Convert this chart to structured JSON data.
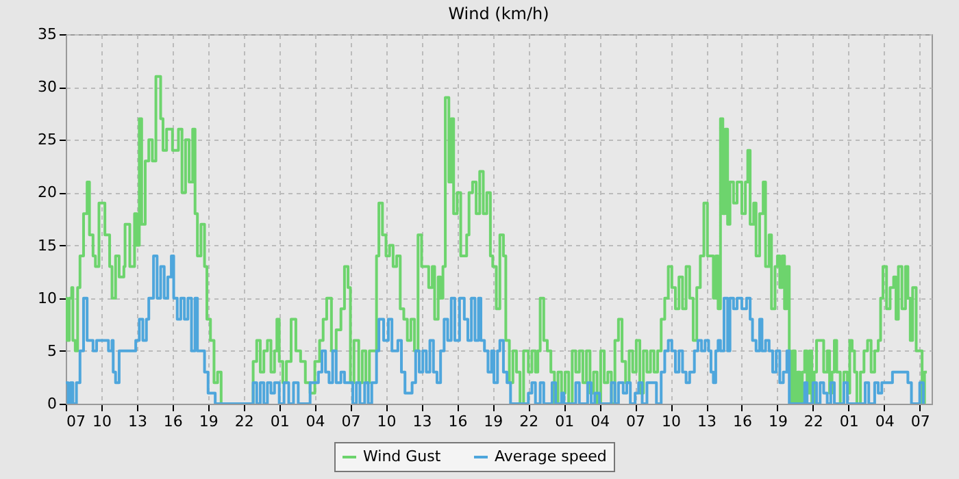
{
  "chart_data": {
    "type": "step",
    "title": "Wind (km/h)",
    "legend": "bottom",
    "grid": true,
    "xlim": [
      "--01-01T07:00",
      "--01-04T08:00"
    ],
    "ylim": [
      0,
      35
    ],
    "yticks": [
      0,
      5,
      10,
      15,
      20,
      25,
      30,
      35
    ],
    "xticks": [
      {
        "value": "--01-01T07:00",
        "label": "07"
      },
      {
        "value": "--01-01T10:00",
        "label": "10"
      },
      {
        "value": "--01-01T13:00",
        "label": "13"
      },
      {
        "value": "--01-01T16:00",
        "label": "16"
      },
      {
        "value": "--01-01T19:00",
        "label": "19"
      },
      {
        "value": "--01-01T22:00",
        "label": "22"
      },
      {
        "value": "--01-02T01:00",
        "label": "01"
      },
      {
        "value": "--01-02T04:00",
        "label": "04"
      },
      {
        "value": "--01-02T07:00",
        "label": "07"
      },
      {
        "value": "--01-02T10:00",
        "label": "10"
      },
      {
        "value": "--01-02T13:00",
        "label": "13"
      },
      {
        "value": "--01-02T16:00",
        "label": "16"
      },
      {
        "value": "--01-02T19:00",
        "label": "19"
      },
      {
        "value": "--01-02T22:00",
        "label": "22"
      },
      {
        "value": "--01-03T01:00",
        "label": "01"
      },
      {
        "value": "--01-03T04:00",
        "label": "04"
      },
      {
        "value": "--01-03T07:00",
        "label": "07"
      },
      {
        "value": "--01-03T10:00",
        "label": "10"
      },
      {
        "value": "--01-03T13:00",
        "label": "13"
      },
      {
        "value": "--01-03T16:00",
        "label": "16"
      },
      {
        "value": "--01-03T19:00",
        "label": "19"
      },
      {
        "value": "--01-03T22:00",
        "label": "22"
      },
      {
        "value": "--01-04T01:00",
        "label": "01"
      },
      {
        "value": "--01-04T04:00",
        "label": "04"
      },
      {
        "value": "--01-04T07:00",
        "label": "07"
      }
    ],
    "series": [
      {
        "name": "Wind Gust",
        "color": "#6dd46d",
        "x": [
          "--01-01T07:00",
          "--01-01T07:06",
          "--01-01T07:18",
          "--01-01T07:30",
          "--01-01T07:36",
          "--01-01T07:48",
          "--01-01T08:00",
          "--01-01T08:12",
          "--01-01T08:30",
          "--01-01T08:48",
          "--01-01T09:00",
          "--01-01T09:18",
          "--01-01T09:30",
          "--01-01T09:48",
          "--01-01T10:18",
          "--01-01T10:42",
          "--01-01T10:54",
          "--01-01T11:12",
          "--01-01T11:30",
          "--01-01T11:54",
          "--01-01T12:00",
          "--01-01T12:24",
          "--01-01T12:48",
          "--01-01T13:00",
          "--01-01T13:12",
          "--01-01T13:24",
          "--01-01T13:42",
          "--01-01T14:00",
          "--01-01T14:18",
          "--01-01T14:36",
          "--01-01T14:54",
          "--01-01T15:00",
          "--01-01T15:12",
          "--01-01T15:30",
          "--01-01T16:00",
          "--01-01T16:30",
          "--01-01T16:48",
          "--01-01T17:06",
          "--01-01T17:24",
          "--01-01T17:42",
          "--01-01T17:54",
          "--01-01T18:06",
          "--01-01T18:24",
          "--01-01T18:42",
          "--01-01T18:54",
          "--01-01T19:12",
          "--01-01T19:30",
          "--01-01T19:48",
          "--01-01T20:06",
          "--01-01T22:48",
          "--01-01T23:06",
          "--01-01T23:24",
          "--01-01T23:42",
          "--01-02T00:00",
          "--01-02T00:18",
          "--01-02T00:36",
          "--01-02T00:48",
          "--01-02T01:00",
          "--01-02T01:18",
          "--01-02T01:36",
          "--01-02T02:00",
          "--01-02T02:24",
          "--01-02T02:48",
          "--01-02T03:12",
          "--01-02T03:36",
          "--01-02T04:00",
          "--01-02T04:24",
          "--01-02T04:42",
          "--01-02T05:00",
          "--01-02T05:24",
          "--01-02T05:48",
          "--01-02T06:12",
          "--01-02T06:30",
          "--01-02T06:48",
          "--01-02T07:00",
          "--01-02T07:18",
          "--01-02T07:42",
          "--01-02T08:00",
          "--01-02T08:18",
          "--01-02T08:36",
          "--01-02T09:00",
          "--01-02T09:12",
          "--01-02T09:24",
          "--01-02T09:42",
          "--01-02T10:00",
          "--01-02T10:18",
          "--01-02T10:36",
          "--01-02T10:54",
          "--01-02T11:12",
          "--01-02T11:30",
          "--01-02T11:48",
          "--01-02T12:06",
          "--01-02T12:24",
          "--01-02T12:42",
          "--01-02T13:00",
          "--01-02T13:18",
          "--01-02T13:36",
          "--01-02T13:54",
          "--01-02T14:06",
          "--01-02T14:24",
          "--01-02T14:36",
          "--01-02T14:48",
          "--01-02T15:00",
          "--01-02T15:18",
          "--01-02T15:30",
          "--01-02T15:42",
          "--01-02T16:00",
          "--01-02T16:18",
          "--01-02T16:36",
          "--01-02T16:48",
          "--01-02T17:00",
          "--01-02T17:18",
          "--01-02T17:36",
          "--01-02T17:54",
          "--01-02T18:12",
          "--01-02T18:30",
          "--01-02T18:48",
          "--01-02T19:00",
          "--01-02T19:18",
          "--01-02T19:36",
          "--01-02T19:54",
          "--01-02T20:06",
          "--01-02T20:24",
          "--01-02T20:42",
          "--01-02T21:00",
          "--01-02T21:18",
          "--01-02T21:36",
          "--01-02T22:00",
          "--01-02T22:18",
          "--01-02T22:36",
          "--01-02T22:48",
          "--01-02T23:00",
          "--01-02T23:18",
          "--01-02T23:36",
          "--01-02T23:54",
          "--01-03T00:12",
          "--01-03T00:30",
          "--01-03T00:48",
          "--01-03T01:06",
          "--01-03T01:24",
          "--01-03T01:42",
          "--01-03T02:00",
          "--01-03T02:18",
          "--01-03T02:36",
          "--01-03T02:54",
          "--01-03T03:12",
          "--01-03T03:30",
          "--01-03T03:48",
          "--01-03T04:06",
          "--01-03T04:24",
          "--01-03T04:42",
          "--01-03T05:00",
          "--01-03T05:18",
          "--01-03T05:36",
          "--01-03T05:54",
          "--01-03T06:12",
          "--01-03T06:30",
          "--01-03T06:48",
          "--01-03T07:06",
          "--01-03T07:24",
          "--01-03T07:42",
          "--01-03T08:00",
          "--01-03T08:18",
          "--01-03T08:36",
          "--01-03T08:54",
          "--01-03T09:12",
          "--01-03T09:30",
          "--01-03T09:48",
          "--01-03T10:06",
          "--01-03T10:24",
          "--01-03T10:42",
          "--01-03T11:00",
          "--01-03T11:18",
          "--01-03T11:36",
          "--01-03T11:54",
          "--01-03T12:12",
          "--01-03T12:30",
          "--01-03T12:48",
          "--01-03T13:06",
          "--01-03T13:36",
          "--01-03T13:48",
          "--01-03T14:00",
          "--01-03T14:12",
          "--01-03T14:24",
          "--01-03T14:36",
          "--01-03T14:48",
          "--01-03T15:00",
          "--01-03T15:18",
          "--01-03T15:36",
          "--01-03T16:00",
          "--01-03T16:18",
          "--01-03T16:30",
          "--01-03T16:42",
          "--01-03T17:00",
          "--01-03T17:12",
          "--01-03T17:30",
          "--01-03T17:48",
          "--01-03T18:00",
          "--01-03T18:18",
          "--01-03T18:30",
          "--01-03T18:48",
          "--01-03T19:00",
          "--01-03T19:12",
          "--01-03T19:24",
          "--01-03T19:36",
          "--01-03T19:48",
          "--01-03T20:00",
          "--01-03T20:06",
          "--01-03T20:18",
          "--01-03T20:30",
          "--01-03T20:42",
          "--01-03T20:54",
          "--01-03T21:06",
          "--01-03T21:18",
          "--01-03T21:30",
          "--01-03T21:42",
          "--01-03T21:54",
          "--01-03T22:06",
          "--01-03T22:18",
          "--01-03T22:54",
          "--01-03T23:12",
          "--01-03T23:24",
          "--01-03T23:36",
          "--01-03T23:48",
          "--01-04T00:00",
          "--01-04T00:18",
          "--01-04T00:36",
          "--01-04T00:54",
          "--01-04T01:06",
          "--01-04T01:18",
          "--01-04T01:30",
          "--01-04T01:42",
          "--01-04T02:00",
          "--01-04T02:18",
          "--01-04T02:36",
          "--01-04T02:54",
          "--01-04T03:12",
          "--01-04T03:30",
          "--01-04T03:42",
          "--01-04T03:54",
          "--01-04T04:12",
          "--01-04T04:30",
          "--01-04T04:48",
          "--01-04T05:00",
          "--01-04T05:12",
          "--01-04T05:30",
          "--01-04T05:48",
          "--01-04T06:00",
          "--01-04T06:12",
          "--01-04T06:24",
          "--01-04T06:42",
          "--01-04T07:12",
          "--01-04T07:24",
          "--01-04T07:36"
        ],
        "values": [
          10,
          6,
          10,
          11,
          6,
          5,
          11,
          14,
          18,
          21,
          16,
          14,
          13,
          19,
          16,
          13,
          10,
          14,
          12,
          13,
          17,
          13,
          18,
          15,
          27,
          17,
          23,
          25,
          23,
          31,
          31,
          27,
          24,
          26,
          24,
          26,
          20,
          25,
          21,
          26,
          18,
          14,
          17,
          13,
          8,
          6,
          2,
          3,
          0,
          4,
          6,
          3,
          5,
          6,
          3,
          5,
          8,
          4,
          2,
          4,
          8,
          5,
          4,
          2,
          1,
          4,
          6,
          8,
          10,
          5,
          7,
          9,
          13,
          11,
          2,
          6,
          2,
          5,
          2,
          5,
          5,
          14,
          19,
          16,
          14,
          15,
          13,
          14,
          9,
          8,
          6,
          8,
          5,
          16,
          13,
          13,
          11,
          13,
          8,
          12,
          10,
          13,
          29,
          21,
          27,
          18,
          20,
          14,
          14,
          16,
          20,
          21,
          18,
          22,
          18,
          20,
          14,
          13,
          9,
          16,
          14,
          6,
          2,
          5,
          3,
          0,
          5,
          3,
          5,
          3,
          5,
          10,
          6,
          5,
          3,
          0,
          3,
          1,
          3,
          0,
          5,
          3,
          5,
          2,
          5,
          1,
          3,
          0,
          5,
          2,
          3,
          0,
          6,
          8,
          4,
          2,
          5,
          3,
          6,
          1,
          5,
          3,
          5,
          3,
          5,
          8,
          10,
          13,
          11,
          9,
          12,
          9,
          13,
          10,
          6,
          11,
          14,
          19,
          14,
          10,
          14,
          9,
          27,
          18,
          26,
          17,
          21,
          19,
          21,
          18,
          21,
          24,
          17,
          19,
          14,
          18,
          21,
          13,
          16,
          9,
          13,
          14,
          11,
          14,
          9,
          13,
          5,
          0,
          5,
          0,
          3,
          0,
          3,
          5,
          1,
          5,
          0,
          3,
          6,
          3,
          5,
          1,
          3,
          6,
          3,
          0,
          3,
          1,
          6,
          5,
          3,
          0,
          3,
          5,
          6,
          3,
          5,
          6,
          10,
          13,
          9,
          11,
          12,
          8,
          13,
          9,
          13,
          10,
          6,
          11,
          5,
          0,
          3,
          3
        ]
      },
      {
        "name": "Average speed",
        "color": "#4ea6dc",
        "x": [
          "--01-01T07:00",
          "--01-01T07:12",
          "--01-01T07:24",
          "--01-01T07:36",
          "--01-01T07:54",
          "--01-01T08:12",
          "--01-01T08:30",
          "--01-01T08:48",
          "--01-01T09:18",
          "--01-01T09:36",
          "--01-01T10:36",
          "--01-01T10:54",
          "--01-01T11:00",
          "--01-01T11:12",
          "--01-01T11:30",
          "--01-01T12:54",
          "--01-01T13:12",
          "--01-01T13:30",
          "--01-01T13:48",
          "--01-01T14:00",
          "--01-01T14:24",
          "--01-01T14:42",
          "--01-01T15:00",
          "--01-01T15:18",
          "--01-01T15:36",
          "--01-01T15:54",
          "--01-01T16:06",
          "--01-01T16:24",
          "--01-01T16:42",
          "--01-01T17:00",
          "--01-01T17:18",
          "--01-01T17:36",
          "--01-01T17:54",
          "--01-01T18:06",
          "--01-01T18:42",
          "--01-01T19:00",
          "--01-01T19:36",
          "--01-01T22:48",
          "--01-01T23:06",
          "--01-01T23:24",
          "--01-01T23:42",
          "--01-02T00:00",
          "--01-02T00:18",
          "--01-02T00:36",
          "--01-02T01:00",
          "--01-02T01:24",
          "--01-02T01:48",
          "--01-02T02:12",
          "--01-02T02:36",
          "--01-02T03:36",
          "--01-02T04:18",
          "--01-02T04:36",
          "--01-02T04:54",
          "--01-02T05:12",
          "--01-02T05:30",
          "--01-02T05:48",
          "--01-02T06:12",
          "--01-02T06:30",
          "--01-02T07:12",
          "--01-02T07:30",
          "--01-02T07:48",
          "--01-02T08:12",
          "--01-02T08:30",
          "--01-02T08:48",
          "--01-02T09:12",
          "--01-02T09:24",
          "--01-02T09:48",
          "--01-02T10:12",
          "--01-02T10:30",
          "--01-02T11:00",
          "--01-02T11:18",
          "--01-02T11:36",
          "--01-02T12:12",
          "--01-02T12:30",
          "--01-02T12:48",
          "--01-02T13:06",
          "--01-02T13:24",
          "--01-02T13:42",
          "--01-02T14:00",
          "--01-02T14:18",
          "--01-02T14:36",
          "--01-02T14:54",
          "--01-02T15:12",
          "--01-02T15:30",
          "--01-02T15:48",
          "--01-02T16:12",
          "--01-02T16:36",
          "--01-02T16:54",
          "--01-02T17:12",
          "--01-02T17:30",
          "--01-02T17:48",
          "--01-02T18:00",
          "--01-02T18:18",
          "--01-02T18:36",
          "--01-02T18:54",
          "--01-02T19:06",
          "--01-02T19:24",
          "--01-02T19:36",
          "--01-02T19:54",
          "--01-02T20:12",
          "--01-02T20:30",
          "--01-02T22:00",
          "--01-02T22:18",
          "--01-02T22:36",
          "--01-02T23:00",
          "--01-02T23:18",
          "--01-03T00:00",
          "--01-03T00:18",
          "--01-03T00:48",
          "--01-03T01:00",
          "--01-03T02:00",
          "--01-03T02:18",
          "--01-03T03:00",
          "--01-03T03:18",
          "--01-03T03:36",
          "--01-03T04:00",
          "--01-03T05:00",
          "--01-03T05:18",
          "--01-03T05:36",
          "--01-03T06:00",
          "--01-03T06:18",
          "--01-03T06:36",
          "--01-03T07:00",
          "--01-03T07:18",
          "--01-03T07:36",
          "--01-03T08:00",
          "--01-03T08:48",
          "--01-03T09:12",
          "--01-03T09:30",
          "--01-03T09:48",
          "--01-03T10:06",
          "--01-03T10:24",
          "--01-03T10:42",
          "--01-03T11:00",
          "--01-03T11:18",
          "--01-03T11:36",
          "--01-03T12:00",
          "--01-03T12:18",
          "--01-03T12:36",
          "--01-03T12:54",
          "--01-03T13:12",
          "--01-03T13:24",
          "--01-03T13:36",
          "--01-03T13:48",
          "--01-03T14:00",
          "--01-03T14:12",
          "--01-03T14:30",
          "--01-03T14:48",
          "--01-03T15:00",
          "--01-03T15:18",
          "--01-03T15:36",
          "--01-03T16:00",
          "--01-03T16:24",
          "--01-03T16:42",
          "--01-03T16:54",
          "--01-03T17:12",
          "--01-03T17:30",
          "--01-03T17:42",
          "--01-03T18:00",
          "--01-03T18:18",
          "--01-03T18:36",
          "--01-03T18:54",
          "--01-03T19:12",
          "--01-03T19:30",
          "--01-03T19:48",
          "--01-03T20:00",
          "--01-03T21:18",
          "--01-03T21:30",
          "--01-03T22:00",
          "--01-03T22:18",
          "--01-03T22:36",
          "--01-03T22:54",
          "--01-03T23:12",
          "--01-03T23:30",
          "--01-03T23:48",
          "--01-04T00:36",
          "--01-04T00:54",
          "--01-04T02:24",
          "--01-04T02:42",
          "--01-04T03:12",
          "--01-04T03:30",
          "--01-04T03:48",
          "--01-04T04:42",
          "--01-04T06:00",
          "--01-04T06:18",
          "--01-04T07:00",
          "--01-04T07:18"
        ],
        "values": [
          2,
          0,
          2,
          0,
          2,
          5,
          10,
          6,
          5,
          6,
          5,
          6,
          3,
          2,
          5,
          6,
          8,
          6,
          8,
          10,
          14,
          10,
          13,
          10,
          12,
          14,
          10,
          8,
          10,
          8,
          10,
          5,
          10,
          5,
          3,
          1,
          0,
          2,
          0,
          2,
          0,
          2,
          1,
          2,
          0,
          2,
          0,
          2,
          0,
          2,
          3,
          5,
          3,
          2,
          5,
          2,
          3,
          2,
          0,
          2,
          0,
          2,
          0,
          2,
          5,
          8,
          6,
          8,
          5,
          6,
          3,
          1,
          2,
          5,
          3,
          5,
          3,
          6,
          3,
          2,
          5,
          8,
          6,
          10,
          6,
          10,
          8,
          6,
          10,
          6,
          10,
          6,
          5,
          3,
          5,
          2,
          5,
          6,
          3,
          2,
          0,
          1,
          2,
          0,
          2,
          0,
          2,
          0,
          1,
          0,
          2,
          0,
          2,
          0,
          1,
          0,
          2,
          0,
          2,
          1,
          2,
          0,
          1,
          2,
          0,
          2,
          0,
          3,
          5,
          6,
          5,
          3,
          5,
          3,
          2,
          3,
          5,
          6,
          5,
          6,
          5,
          3,
          2,
          5,
          6,
          5,
          10,
          5,
          10,
          9,
          10,
          9,
          10,
          8,
          6,
          5,
          8,
          5,
          6,
          5,
          3,
          5,
          2,
          3,
          5,
          0,
          2,
          0,
          2,
          0,
          2,
          1,
          0,
          2,
          0,
          2,
          0,
          2,
          0,
          2,
          1,
          2,
          3,
          2,
          0,
          2,
          0
        ]
      }
    ]
  }
}
